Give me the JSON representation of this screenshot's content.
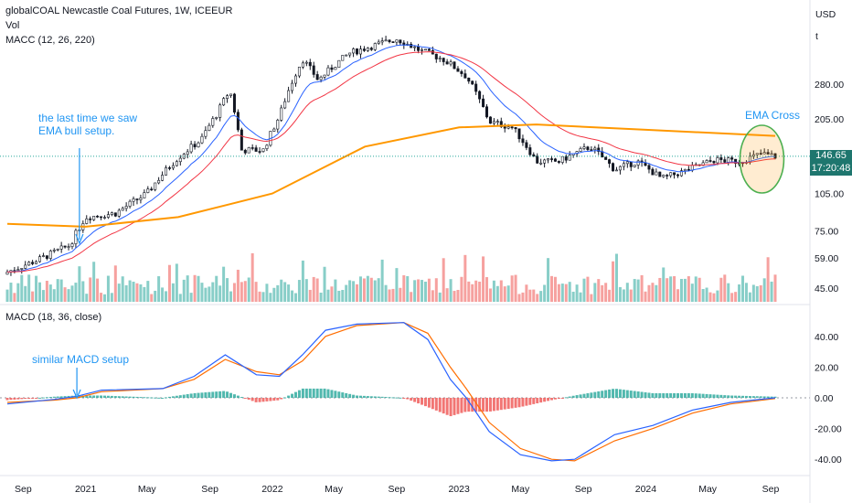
{
  "header": {
    "title": "globalCOAL Newcastle Coal Futures, 1W, ICEEUR",
    "vol_label": "Vol",
    "macc_label": "MACC (12, 26, 220)",
    "macd_label": "MACD (18, 36, close)"
  },
  "right_axis": {
    "currency": "USD",
    "scale_mode": "t"
  },
  "price_tag": {
    "value": "146.65",
    "countdown": "17:20:48"
  },
  "annotations": {
    "ema_bull": [
      "the last time we saw",
      "EMA bull setup."
    ],
    "macd_setup": "similar MACD setup",
    "ema_cross": "EMA Cross"
  },
  "colors": {
    "up": "#26a69a",
    "down": "#ef5350",
    "candle": "#131722",
    "ema_fast": "#2962ff",
    "ema_slow": "#f23645",
    "ema_long": "#ff9800",
    "macd": "#2962ff",
    "signal": "#ff6d00",
    "annotation": "#2196f3",
    "highlight": "#4caf50"
  },
  "chart_data": [
    {
      "type": "candlestick",
      "title": "globalCOAL Newcastle Coal Futures, 1W, ICEEUR",
      "y_scale": "log",
      "y_ticks": [
        45,
        59,
        75,
        105,
        146.65,
        205,
        280
      ],
      "y_tick_labels": [
        "45.00",
        "59.00",
        "75.00",
        "105.00",
        "146.65",
        "205.00",
        "280.00"
      ],
      "x_ticks": [
        "Sep",
        "2021",
        "May",
        "Sep",
        "2022",
        "May",
        "Sep",
        "2023",
        "May",
        "Sep",
        "2024",
        "May",
        "Sep"
      ],
      "last_price": 146.65,
      "price_path": [
        {
          "t": "2020-08-01",
          "v": 52
        },
        {
          "t": "2020-10-01",
          "v": 58
        },
        {
          "t": "2020-12-01",
          "v": 66
        },
        {
          "t": "2021-01-01",
          "v": 85
        },
        {
          "t": "2021-03-01",
          "v": 88
        },
        {
          "t": "2021-05-01",
          "v": 105
        },
        {
          "t": "2021-07-01",
          "v": 145
        },
        {
          "t": "2021-08-15",
          "v": 170
        },
        {
          "t": "2021-09-15",
          "v": 215
        },
        {
          "t": "2021-10-10",
          "v": 265
        },
        {
          "t": "2021-11-01",
          "v": 155
        },
        {
          "t": "2021-12-15",
          "v": 155
        },
        {
          "t": "2022-01-15",
          "v": 210
        },
        {
          "t": "2022-03-01",
          "v": 350
        },
        {
          "t": "2022-04-01",
          "v": 290
        },
        {
          "t": "2022-06-01",
          "v": 370
        },
        {
          "t": "2022-09-01",
          "v": 420
        },
        {
          "t": "2022-10-15",
          "v": 380
        },
        {
          "t": "2022-12-01",
          "v": 350
        },
        {
          "t": "2023-01-15",
          "v": 300
        },
        {
          "t": "2023-03-01",
          "v": 200
        },
        {
          "t": "2023-04-15",
          "v": 190
        },
        {
          "t": "2023-06-01",
          "v": 140
        },
        {
          "t": "2023-07-15",
          "v": 140
        },
        {
          "t": "2023-09-15",
          "v": 160
        },
        {
          "t": "2023-11-01",
          "v": 130
        },
        {
          "t": "2023-12-15",
          "v": 140
        },
        {
          "t": "2024-02-01",
          "v": 120
        },
        {
          "t": "2024-03-15",
          "v": 128
        },
        {
          "t": "2024-05-15",
          "v": 142
        },
        {
          "t": "2024-07-01",
          "v": 140
        },
        {
          "t": "2024-08-15",
          "v": 150
        },
        {
          "t": "2024-09-10",
          "v": 146.65
        }
      ],
      "long_ema_path": [
        {
          "t": "2020-08-01",
          "v": 80
        },
        {
          "t": "2021-01-01",
          "v": 78
        },
        {
          "t": "2021-07-01",
          "v": 85
        },
        {
          "t": "2022-01-01",
          "v": 105
        },
        {
          "t": "2022-07-01",
          "v": 160
        },
        {
          "t": "2023-01-01",
          "v": 190
        },
        {
          "t": "2023-06-01",
          "v": 195
        },
        {
          "t": "2024-01-01",
          "v": 186
        },
        {
          "t": "2024-09-10",
          "v": 176
        }
      ]
    },
    {
      "type": "histogram",
      "title": "Vol",
      "note": "weekly volume bars, green = up week, red = down week"
    },
    {
      "type": "line",
      "title": "MACD (18, 36, close)",
      "y_ticks": [
        -40,
        -20,
        0,
        20,
        40
      ],
      "y_tick_labels": [
        "-40.00",
        "-20.00",
        "0.00",
        "20.00",
        "40.00"
      ],
      "series": [
        {
          "name": "MACD",
          "points": [
            {
              "t": "2020-08-01",
              "v": -4
            },
            {
              "t": "2020-11-01",
              "v": -1
            },
            {
              "t": "2020-12-15",
              "v": 1
            },
            {
              "t": "2021-02-01",
              "v": 5
            },
            {
              "t": "2021-06-01",
              "v": 6
            },
            {
              "t": "2021-08-01",
              "v": 14
            },
            {
              "t": "2021-10-01",
              "v": 28
            },
            {
              "t": "2021-12-01",
              "v": 15
            },
            {
              "t": "2022-01-15",
              "v": 14
            },
            {
              "t": "2022-03-01",
              "v": 28
            },
            {
              "t": "2022-04-15",
              "v": 44
            },
            {
              "t": "2022-06-15",
              "v": 48
            },
            {
              "t": "2022-09-15",
              "v": 49
            },
            {
              "t": "2022-11-01",
              "v": 38
            },
            {
              "t": "2022-12-15",
              "v": 12
            },
            {
              "t": "2023-01-15",
              "v": 0
            },
            {
              "t": "2023-03-01",
              "v": -22
            },
            {
              "t": "2023-05-01",
              "v": -37
            },
            {
              "t": "2023-07-01",
              "v": -41
            },
            {
              "t": "2023-08-15",
              "v": -40
            },
            {
              "t": "2023-11-01",
              "v": -24
            },
            {
              "t": "2024-01-15",
              "v": -18
            },
            {
              "t": "2024-04-01",
              "v": -8
            },
            {
              "t": "2024-06-15",
              "v": -3
            },
            {
              "t": "2024-09-10",
              "v": 0
            }
          ]
        },
        {
          "name": "Signal",
          "points": [
            {
              "t": "2020-08-01",
              "v": -3
            },
            {
              "t": "2020-11-01",
              "v": -1.5
            },
            {
              "t": "2020-12-15",
              "v": 0
            },
            {
              "t": "2021-02-01",
              "v": 4
            },
            {
              "t": "2021-06-01",
              "v": 6
            },
            {
              "t": "2021-08-01",
              "v": 12
            },
            {
              "t": "2021-10-01",
              "v": 25
            },
            {
              "t": "2021-12-01",
              "v": 17
            },
            {
              "t": "2022-01-15",
              "v": 15
            },
            {
              "t": "2022-03-01",
              "v": 24
            },
            {
              "t": "2022-04-15",
              "v": 40
            },
            {
              "t": "2022-06-15",
              "v": 47
            },
            {
              "t": "2022-09-15",
              "v": 49
            },
            {
              "t": "2022-11-01",
              "v": 42
            },
            {
              "t": "2022-12-15",
              "v": 20
            },
            {
              "t": "2023-01-15",
              "v": 6
            },
            {
              "t": "2023-03-01",
              "v": -16
            },
            {
              "t": "2023-05-01",
              "v": -33
            },
            {
              "t": "2023-07-01",
              "v": -40
            },
            {
              "t": "2023-08-15",
              "v": -41
            },
            {
              "t": "2023-11-01",
              "v": -28
            },
            {
              "t": "2024-01-15",
              "v": -20
            },
            {
              "t": "2024-04-01",
              "v": -10
            },
            {
              "t": "2024-06-15",
              "v": -4
            },
            {
              "t": "2024-09-10",
              "v": -0.5
            }
          ]
        }
      ]
    }
  ]
}
